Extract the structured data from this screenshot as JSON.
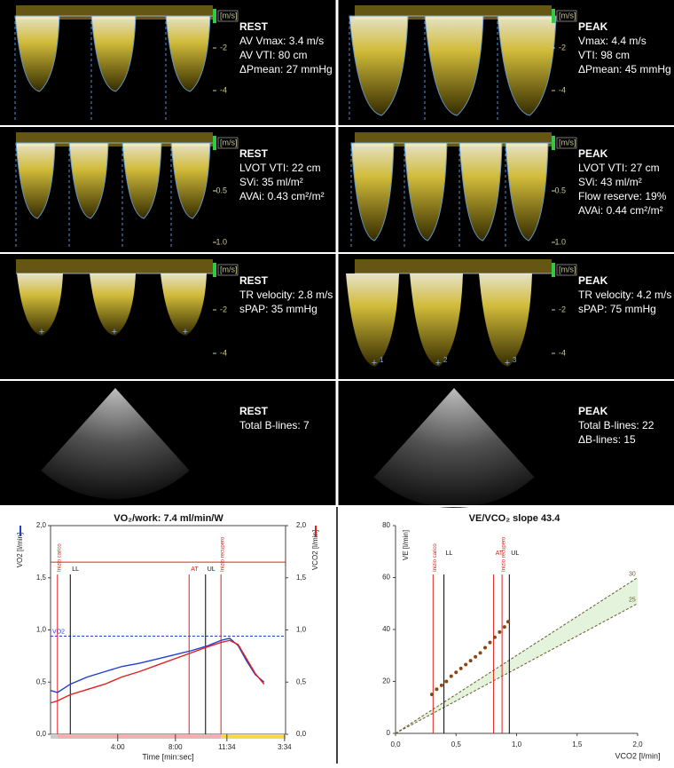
{
  "panels": [
    {
      "cells": [
        {
          "title": "REST",
          "lines": [
            "AV Vmax: 3.4 m/s",
            "AV VTI: 80 cm",
            "ΔPmean: 27 mmHg"
          ],
          "unit": "[m/s]",
          "scale": [
            "-2",
            "-4"
          ]
        },
        {
          "title": "PEAK",
          "lines": [
            "Vmax: 4.4 m/s",
            "VTI: 98 cm",
            "ΔPmean: 45 mmHg"
          ],
          "unit": "[m/s]",
          "scale": [
            "-2",
            "-4"
          ]
        }
      ]
    },
    {
      "cells": [
        {
          "title": "REST",
          "lines": [
            "LVOT VTI: 22 cm",
            "SVi: 35 ml/m²",
            "AVAi: 0.43 cm²/m²"
          ],
          "unit": "[m/s]",
          "scale": [
            "-0.5",
            "-1.0"
          ]
        },
        {
          "title": "PEAK",
          "lines": [
            "LVOT VTI: 27 cm",
            "SVi: 43 ml/m²",
            "Flow reserve: 19%",
            "AVAi: 0.44 cm²/m²"
          ],
          "unit": "[m/s]",
          "scale": [
            "-0.5",
            "-1.0"
          ]
        }
      ]
    },
    {
      "cells": [
        {
          "title": "REST",
          "lines": [
            "TR velocity: 2.8 m/s",
            "sPAP: 35 mmHg"
          ],
          "unit": "[m/s]",
          "scale": [
            "-2",
            "-4"
          ]
        },
        {
          "title": "PEAK",
          "lines": [
            "TR velocity: 4.2 m/s",
            "sPAP: 75 mmHg"
          ],
          "unit": "[m/s]",
          "scale": [
            "-2",
            "-4"
          ],
          "markers": [
            "1",
            "2",
            "3"
          ]
        }
      ]
    },
    {
      "cells": [
        {
          "title": "REST",
          "lines": [
            "Total B-lines: 7"
          ]
        },
        {
          "title": "PEAK",
          "lines": [
            "Total B-lines: 22",
            "ΔB-lines: 15"
          ]
        }
      ]
    }
  ],
  "chart_data": [
    {
      "type": "line",
      "title": "VO₂/work: 7.4 ml/min/W",
      "x_label": "Time [min:sec]",
      "y_label": "VO2 [l/min]",
      "y2_label": "VCO2 [l/min]",
      "xlim": [
        -0.66,
        15.64
      ],
      "xticks": [
        {
          "value": 4,
          "label": "4:00"
        },
        {
          "value": 8,
          "label": "8:00"
        },
        {
          "value": 11.57,
          "label": "11:34"
        },
        {
          "value": 15.57,
          "label": "3:34"
        }
      ],
      "ylim": [
        0,
        2
      ],
      "yticks": [
        {
          "value": 0,
          "label": "0,0"
        },
        {
          "value": 0.5,
          "label": "0,5"
        },
        {
          "value": 1,
          "label": "1,0"
        },
        {
          "value": 1.5,
          "label": "1,5"
        },
        {
          "value": 2,
          "label": "2,0"
        }
      ],
      "y2lim": [
        0,
        2
      ],
      "y2ticks": [
        {
          "value": 0,
          "label": "0,0"
        },
        {
          "value": 0.5,
          "label": "0,5"
        },
        {
          "value": 1,
          "label": "1,0"
        },
        {
          "value": 1.5,
          "label": "1,5"
        },
        {
          "value": 2,
          "label": "2,0"
        }
      ],
      "x": [
        -0.66,
        -0.18,
        0.71,
        1.91,
        3.1,
        4.3,
        5.49,
        6.68,
        7.88,
        9.07,
        10.27,
        11.16,
        11.76,
        12.35,
        12.95,
        13.55,
        14.15
      ],
      "series": [
        {
          "color": "#1f3fd0",
          "values": [
            0.42,
            0.4,
            0.48,
            0.55,
            0.6,
            0.65,
            0.68,
            0.72,
            0.76,
            0.8,
            0.85,
            0.9,
            0.92,
            0.85,
            0.7,
            0.57,
            0.5
          ]
        },
        {
          "color": "#e0201e",
          "axis": "y2",
          "values": [
            0.3,
            0.32,
            0.38,
            0.43,
            0.48,
            0.55,
            0.6,
            0.66,
            0.72,
            0.78,
            0.84,
            0.88,
            0.9,
            0.86,
            0.72,
            0.58,
            0.48
          ]
        }
      ],
      "events": [
        {
          "label": "Inizio carico",
          "x": -0.18,
          "color": "#e0201e"
        },
        {
          "label": "LL",
          "x": 0.71,
          "color": "#000000"
        },
        {
          "label": "AT",
          "x": 8.95,
          "color": "#e0201e"
        },
        {
          "label": "UL",
          "x": 10.09,
          "color": "#000000"
        },
        {
          "label": "Inizio recupero",
          "x": 11.16,
          "color": "#e0201e"
        }
      ],
      "hlines": [
        {
          "label": "VO2",
          "y": 0.94,
          "color": "#1f3fd0",
          "dashed": true
        },
        {
          "y": 1.65,
          "color": "#e0201e",
          "dashed": false
        }
      ]
    },
    {
      "type": "scatter",
      "title": "VE/VCO₂ slope 43.4",
      "x_label": "VCO2 [l/min]",
      "y_label": "VE [l/min]",
      "xlim": [
        0,
        2
      ],
      "xticks": [
        {
          "value": 0,
          "label": "0,0"
        },
        {
          "value": 0.5,
          "label": "0,5"
        },
        {
          "value": 1,
          "label": "1,0"
        },
        {
          "value": 1.5,
          "label": "1,5"
        },
        {
          "value": 2,
          "label": "2,0"
        }
      ],
      "ylim": [
        0,
        80
      ],
      "yticks": [
        0,
        20,
        40,
        60,
        80
      ],
      "x": [
        0.3,
        0.34,
        0.38,
        0.42,
        0.46,
        0.5,
        0.54,
        0.58,
        0.62,
        0.66,
        0.7,
        0.74,
        0.78,
        0.82,
        0.86,
        0.9,
        0.93
      ],
      "series": [
        {
          "color": "#8b4513",
          "values": [
            15,
            17,
            18.5,
            20,
            22,
            23.5,
            25,
            26.5,
            28,
            29.5,
            31,
            33,
            35,
            37,
            39,
            41,
            43
          ]
        }
      ],
      "events": [
        {
          "label": "Inizio carico",
          "x": 0.31,
          "color": "#e0201e"
        },
        {
          "label": "LL",
          "x": 0.4,
          "color": "#000000"
        },
        {
          "label": "AT",
          "x": 0.81,
          "color": "#e0201e"
        },
        {
          "label": "Inizio recupero",
          "x": 0.88,
          "color": "#e0201e"
        },
        {
          "label": "UL",
          "x": 0.94,
          "color": "#000000"
        }
      ],
      "reference_lines": [
        {
          "label": "30",
          "slope": 30
        },
        {
          "label": "25",
          "slope": 25
        }
      ]
    }
  ]
}
